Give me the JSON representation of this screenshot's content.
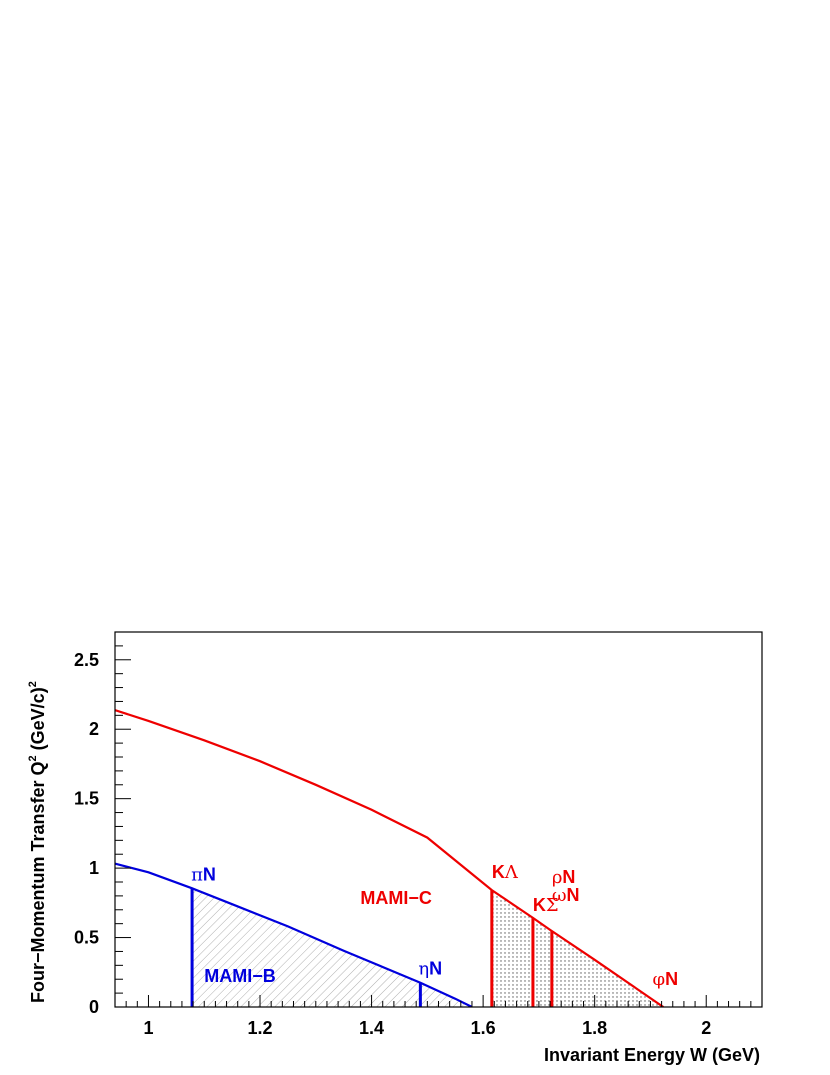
{
  "chart_data": {
    "type": "line",
    "title": "",
    "xlabel": "Invariant Energy W (GeV)",
    "ylabel": "Four−Momentum Transfer Q",
    "ylabel_suffix": " (GeV/c)",
    "ylabel_sup1": "2",
    "ylabel_sup2": "2",
    "xlim": [
      0.94,
      2.1
    ],
    "ylim": [
      0,
      2.7
    ],
    "xticks": [
      1,
      1.2,
      1.4,
      1.6,
      1.8,
      2
    ],
    "xtick_labels": [
      "1",
      "1.2",
      "1.4",
      "1.6",
      "1.8",
      "2"
    ],
    "yticks": [
      0,
      0.5,
      1,
      1.5,
      2,
      2.5
    ],
    "ytick_labels": [
      "0",
      "0.5",
      "1",
      "1.5",
      "2",
      "2.5"
    ],
    "grid": false,
    "series": [
      {
        "name": "MAMI-B",
        "color": "#0000dd",
        "x": [
          0.938,
          1.0,
          1.0782,
          1.15,
          1.25,
          1.35,
          1.4875,
          1.55,
          1.58
        ],
        "y": [
          1.035,
          0.97,
          0.855,
          0.74,
          0.58,
          0.405,
          0.175,
          0.06,
          0.0
        ]
      },
      {
        "name": "MAMI-C",
        "color": "#ee0000",
        "x": [
          0.938,
          1.0,
          1.1,
          1.2,
          1.3,
          1.4,
          1.5,
          1.6156,
          1.69,
          1.72,
          1.8,
          1.923
        ],
        "y": [
          2.14,
          2.06,
          1.92,
          1.77,
          1.6,
          1.42,
          1.22,
          0.842,
          0.64,
          0.555,
          0.34,
          0.0
        ]
      }
    ],
    "thresholds": [
      {
        "label": "πN",
        "x": 1.0782,
        "color": "#0000dd"
      },
      {
        "label": "ηN",
        "x": 1.4875,
        "color": "#0000dd"
      },
      {
        "label": "KΛ",
        "x": 1.6156,
        "color": "#ee0000"
      },
      {
        "label": "KΣ",
        "x": 1.6893,
        "color": "#ee0000"
      },
      {
        "label": "ρN",
        "x": 1.7232,
        "color": "#ee0000"
      },
      {
        "label": "ωN",
        "x": 1.7232,
        "color": "#ee0000"
      },
      {
        "label": "φN",
        "x": 1.9574,
        "color": "#ee0000"
      }
    ],
    "regions": [
      {
        "label": "MAMI-B",
        "color": "#0000dd",
        "fill": "hatched",
        "x_from": 1.0782,
        "x_to": 1.58
      },
      {
        "label": "MAMI-C",
        "color": "#ee0000",
        "fill": "dotted",
        "x_from": 1.6156,
        "x_to": 1.923
      }
    ]
  }
}
